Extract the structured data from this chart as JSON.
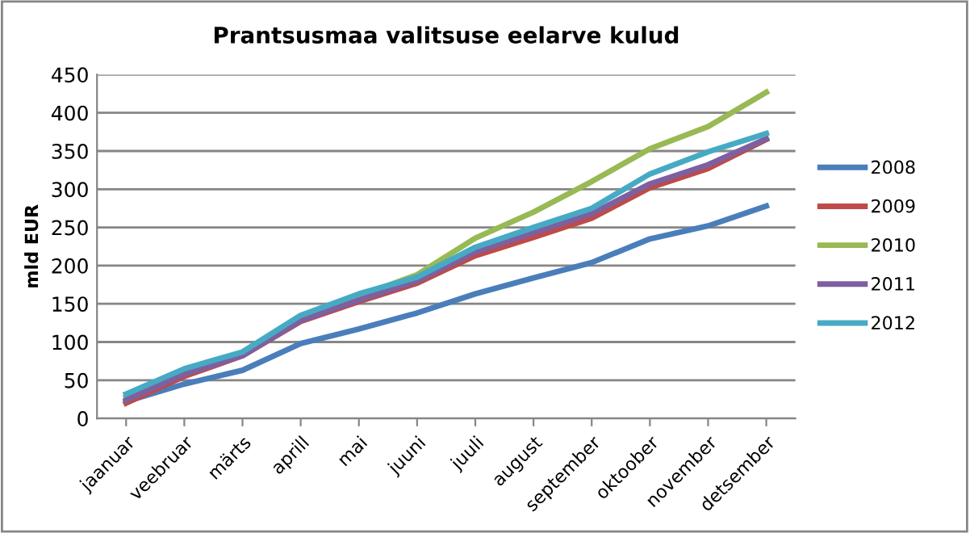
{
  "chart_data": {
    "type": "line",
    "title": "Prantsusmaa valitsuse eelarve kulud",
    "ylabel": "mld EUR",
    "categories": [
      "jaanuar",
      "veebruar",
      "märts",
      "aprill",
      "mai",
      "juuni",
      "juuli",
      "august",
      "september",
      "oktoober",
      "november",
      "detsember"
    ],
    "series": [
      {
        "name": "2008",
        "color": "#4a7ebb",
        "values": [
          22,
          45,
          63,
          98,
          117,
          138,
          163,
          184,
          204,
          235,
          252,
          278
        ]
      },
      {
        "name": "2009",
        "color": "#be4b48",
        "values": [
          20,
          55,
          82,
          127,
          153,
          177,
          213,
          237,
          262,
          302,
          327,
          365
        ]
      },
      {
        "name": "2010",
        "color": "#98b954",
        "values": [
          28,
          63,
          86,
          133,
          160,
          188,
          236,
          270,
          310,
          353,
          382,
          427
        ]
      },
      {
        "name": "2011",
        "color": "#7d60a0",
        "values": [
          24,
          58,
          82,
          128,
          155,
          180,
          218,
          243,
          268,
          307,
          332,
          366
        ]
      },
      {
        "name": "2012",
        "color": "#46aac5",
        "values": [
          32,
          65,
          87,
          135,
          163,
          185,
          224,
          250,
          275,
          320,
          349,
          373
        ]
      }
    ],
    "ylim": [
      0,
      450
    ],
    "yticks": [
      0,
      50,
      100,
      150,
      200,
      250,
      300,
      350,
      400,
      450
    ],
    "grid": "y",
    "legend": "right",
    "marker": "none",
    "line_style": "solid"
  }
}
